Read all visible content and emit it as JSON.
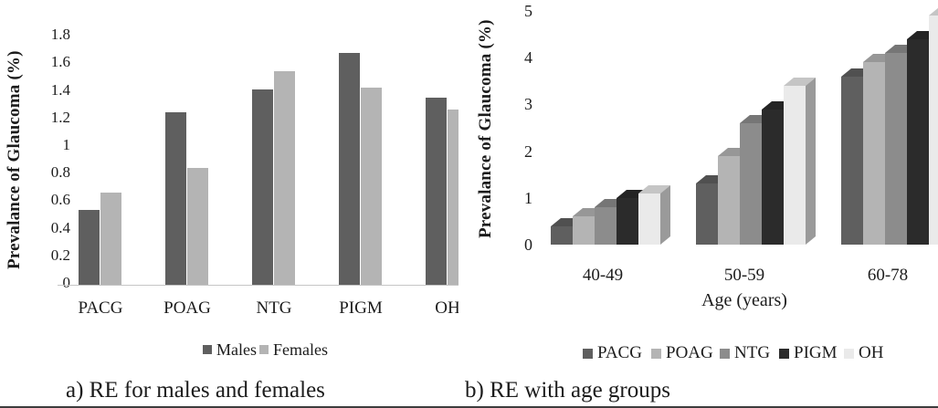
{
  "chart_data": [
    {
      "id": "re-males-females",
      "type": "bar",
      "title": "",
      "ylabel": "Prevalance of Glaucoma (%)",
      "xlabel": "",
      "categories": [
        "PACG",
        "POAG",
        "NTG",
        "PIGM",
        "OH"
      ],
      "series": [
        {
          "name": "Males",
          "color": "#5f5f5f",
          "values": [
            0.54,
            1.25,
            1.42,
            1.68,
            1.36
          ]
        },
        {
          "name": "Females",
          "color": "#b4b4b4",
          "values": [
            0.67,
            0.85,
            1.55,
            1.43,
            1.27
          ]
        }
      ],
      "ylim": [
        0,
        1.8
      ],
      "yticks": [
        "0",
        "0.2",
        "0.4",
        "0.6",
        "0.8",
        "1",
        "1.2",
        "1.4",
        "1.6",
        "1.8"
      ],
      "grid": false,
      "legend_position": "bottom",
      "legend_labels": [
        "Males",
        "Females"
      ],
      "caption": "a) RE for males and females"
    },
    {
      "id": "re-age-groups",
      "type": "bar",
      "style_3d": true,
      "title": "",
      "ylabel": "Prevalance of Glaucoma (%)",
      "xlabel": "Age (years)",
      "categories": [
        "40-49",
        "50-59",
        "60-78"
      ],
      "series": [
        {
          "name": "PACG",
          "color": "#5f5f5f",
          "values": [
            0.4,
            1.3,
            3.6
          ]
        },
        {
          "name": "POAG",
          "color": "#b4b4b4",
          "values": [
            0.6,
            1.9,
            3.9
          ]
        },
        {
          "name": "NTG",
          "color": "#8c8c8c",
          "values": [
            0.8,
            2.6,
            4.1
          ]
        },
        {
          "name": "PIGM",
          "color": "#2b2b2b",
          "values": [
            1.0,
            2.9,
            4.4
          ]
        },
        {
          "name": "OH",
          "color": "#eaeaea",
          "values": [
            1.1,
            3.4,
            4.9
          ]
        }
      ],
      "ylim": [
        0,
        5
      ],
      "yticks": [
        "0",
        "1",
        "2",
        "3",
        "4",
        "5"
      ],
      "grid": false,
      "legend_position": "bottom",
      "legend_labels": [
        "PACG",
        "POAG",
        "NTG",
        "PIGM",
        "OH"
      ],
      "caption": "b) RE with age groups"
    }
  ]
}
